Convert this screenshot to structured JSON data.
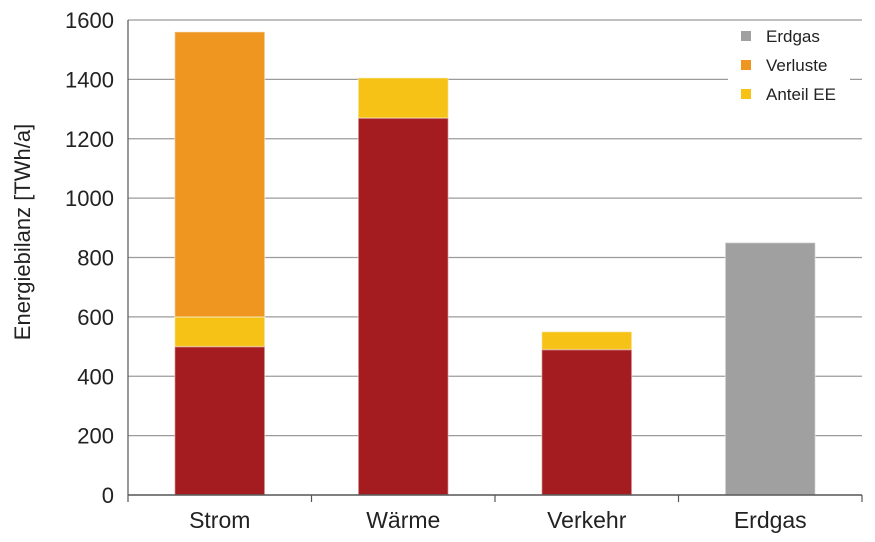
{
  "chart_data": {
    "type": "bar",
    "stacked": true,
    "title": "",
    "xlabel": "",
    "ylabel": "Energiebilanz [TWh/a]",
    "ylim": [
      0,
      1600
    ],
    "yticks": [
      0,
      200,
      400,
      600,
      800,
      1000,
      1200,
      1400,
      1600
    ],
    "grid": true,
    "legend_position": "top-right",
    "categories": [
      "Strom",
      "Wärme",
      "Verkehr",
      "Erdgas"
    ],
    "series": [
      {
        "key": "erdgas_base",
        "values": [
          500,
          1270,
          490,
          850
        ],
        "colors": [
          "#a41c20",
          "#a41c20",
          "#a41c20",
          "#a0a0a0"
        ]
      },
      {
        "name": "Anteil EE",
        "values": [
          100,
          135,
          60,
          0
        ],
        "color": "#f5c215"
      },
      {
        "name": "Verluste",
        "values": [
          960,
          0,
          0,
          0
        ],
        "color": "#ef9621"
      }
    ],
    "legend": [
      {
        "label": "Erdgas",
        "color": "#a0a0a0"
      },
      {
        "label": "Verluste",
        "color": "#ef9621"
      },
      {
        "label": "Anteil EE",
        "color": "#f5c215"
      }
    ]
  }
}
